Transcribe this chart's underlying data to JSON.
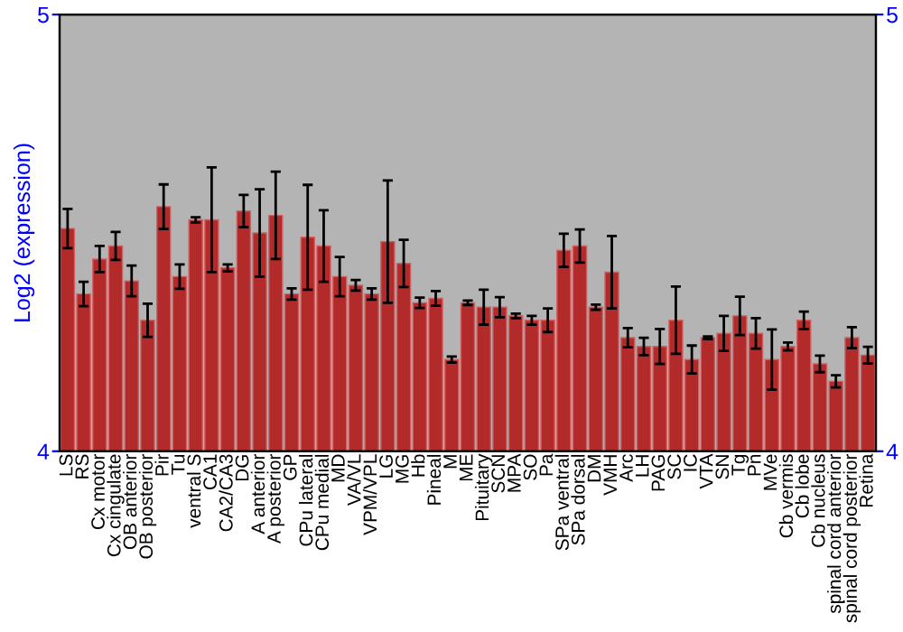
{
  "chart_data": {
    "type": "bar",
    "ylabel": "Log2 (expression)",
    "categories": [
      "LS",
      "RS",
      "Cx motor",
      "Cx cingulate",
      "OB anterior",
      "OB posterior",
      "Pir",
      "Tu",
      "ventral S",
      "CA1",
      "CA2/CA3",
      "DG",
      "A anterior",
      "A posterior",
      "GP",
      "CPu lateral",
      "CPu medial",
      "MD",
      "VA/VL",
      "VPM/VPL",
      "LG",
      "MG",
      "Hb",
      "Pineal",
      "M",
      "ME",
      "Pituitary",
      "SCN",
      "MPA",
      "SO",
      "Pa",
      "SPa ventral",
      "SPa dorsal",
      "DM",
      "VMH",
      "Arc",
      "LH",
      "PAG",
      "SC",
      "IC",
      "VTA",
      "SN",
      "Tg",
      "Pn",
      "MVe",
      "Cb vermis",
      "Cb lobe",
      "Cb nucleus",
      "spinal cord anterior",
      "spinal cord posterior",
      "Retina"
    ],
    "values": [
      4.51,
      4.36,
      4.44,
      4.47,
      4.39,
      4.3,
      4.56,
      4.4,
      4.53,
      4.53,
      4.42,
      4.55,
      4.5,
      4.54,
      4.36,
      4.49,
      4.47,
      4.4,
      4.38,
      4.36,
      4.48,
      4.43,
      4.34,
      4.35,
      4.21,
      4.34,
      4.33,
      4.33,
      4.31,
      4.3,
      4.3,
      4.46,
      4.47,
      4.33,
      4.41,
      4.26,
      4.24,
      4.24,
      4.3,
      4.21,
      4.26,
      4.27,
      4.31,
      4.27,
      4.21,
      4.24,
      4.3,
      4.2,
      4.16,
      4.26,
      4.22
    ],
    "errors": [
      0.045,
      0.028,
      0.03,
      0.032,
      0.035,
      0.038,
      0.051,
      0.028,
      0.006,
      0.12,
      0.008,
      0.037,
      0.1,
      0.1,
      0.013,
      0.12,
      0.082,
      0.045,
      0.012,
      0.013,
      0.14,
      0.054,
      0.012,
      0.017,
      0.007,
      0.005,
      0.04,
      0.023,
      0.005,
      0.01,
      0.027,
      0.038,
      0.038,
      0.006,
      0.083,
      0.022,
      0.02,
      0.04,
      0.077,
      0.032,
      0.003,
      0.04,
      0.044,
      0.035,
      0.069,
      0.009,
      0.02,
      0.019,
      0.014,
      0.024,
      0.019
    ],
    "color": "#b22a2a",
    "ylim": [
      4,
      5
    ],
    "yticks": [
      4,
      5
    ],
    "y2lim": [
      4,
      5
    ],
    "y2ticks": [
      4,
      5
    ]
  }
}
